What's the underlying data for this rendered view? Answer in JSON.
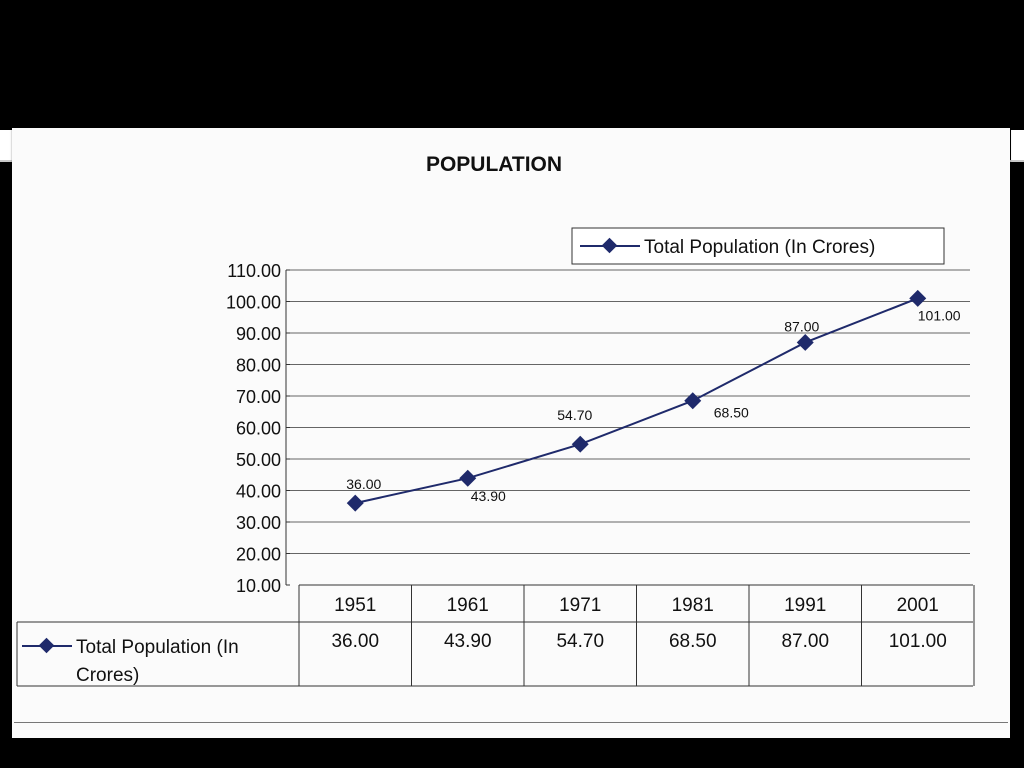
{
  "chart_data": {
    "type": "line",
    "title": "POPULATION",
    "categories": [
      "1951",
      "1961",
      "1971",
      "1981",
      "1991",
      "2001"
    ],
    "series": [
      {
        "name": "Total Population  (In Crores)",
        "values": [
          36.0,
          43.9,
          54.7,
          68.5,
          87.0,
          101.0
        ],
        "value_labels": [
          "36.00",
          "43.90",
          "54.70",
          "68.50",
          "87.00",
          "101.00"
        ]
      }
    ],
    "y_ticks": [
      "10.00",
      "20.00",
      "30.00",
      "40.00",
      "50.00",
      "60.00",
      "70.00",
      "80.00",
      "90.00",
      "100.00",
      "110.00"
    ],
    "ylim": [
      10,
      110
    ],
    "xlabel": "",
    "ylabel": "",
    "grid": true,
    "legend_position": "top-right",
    "data_table": true,
    "data_table_row_label": "Total Population  (In Crores)",
    "series_color": "#1f2a6b"
  }
}
